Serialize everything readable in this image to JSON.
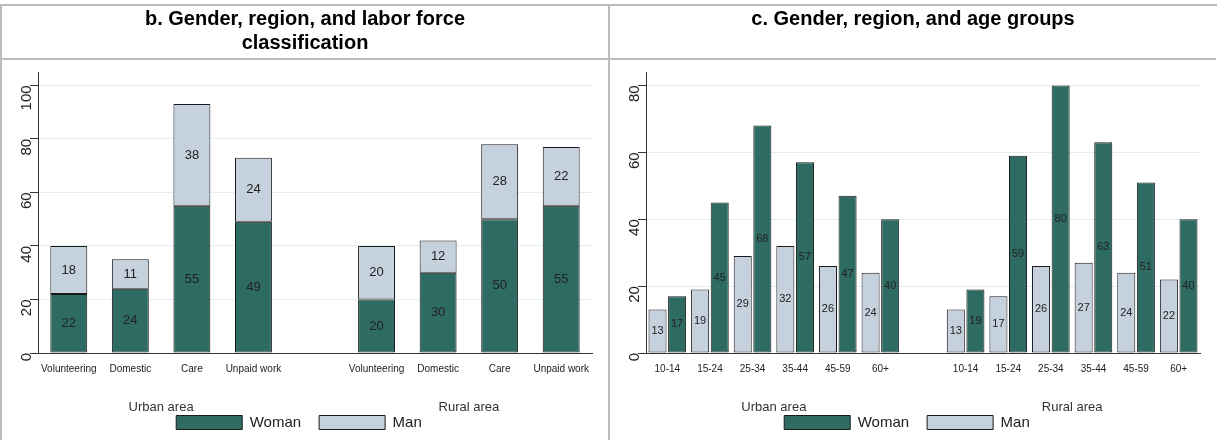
{
  "chart_data": [
    {
      "type": "bar",
      "title": "b.   Gender, region, and labor force classification",
      "stacked": true,
      "categories": [
        "Volunteering",
        "Domestic",
        "Care",
        "Unpaid work",
        null,
        "Volunteering",
        "Domestic",
        "Care",
        "Unpaid work"
      ],
      "series": [
        {
          "name": "Woman",
          "color": "#2e6b62",
          "values": [
            22,
            24,
            55,
            49,
            null,
            20,
            30,
            50,
            55
          ]
        },
        {
          "name": "Man",
          "color": "#c5d1dd",
          "values": [
            18,
            11,
            38,
            24,
            null,
            20,
            12,
            28,
            22
          ]
        }
      ],
      "ylim": [
        0,
        105
      ],
      "yticks": [
        0,
        20,
        40,
        60,
        80,
        100
      ],
      "grid": "y",
      "legend": "bottom",
      "data_labels": true,
      "annotations": [
        "Urban area",
        "Rural area"
      ]
    },
    {
      "type": "bar",
      "title": "c.   Gender, region, and age groups",
      "categories": [
        "10-14",
        "15-24",
        "25-34",
        "35-44",
        "45-59",
        "60+",
        null,
        "10-14",
        "15-24",
        "25-34",
        "35-44",
        "45-59",
        "60+"
      ],
      "series": [
        {
          "name": "Man",
          "color": "#c5d1dd",
          "values": [
            13,
            19,
            29,
            32,
            26,
            24,
            null,
            13,
            17,
            26,
            27,
            24,
            22
          ]
        },
        {
          "name": "Woman",
          "color": "#2e6b62",
          "values": [
            17,
            45,
            68,
            57,
            47,
            40,
            null,
            19,
            59,
            80,
            63,
            51,
            40
          ]
        }
      ],
      "ylim": [
        0,
        84
      ],
      "yticks": [
        0,
        20,
        40,
        60,
        80
      ],
      "grid": "y",
      "legend": "bottom",
      "data_labels": true,
      "annotations": [
        "Urban area",
        "Rural area"
      ]
    }
  ]
}
